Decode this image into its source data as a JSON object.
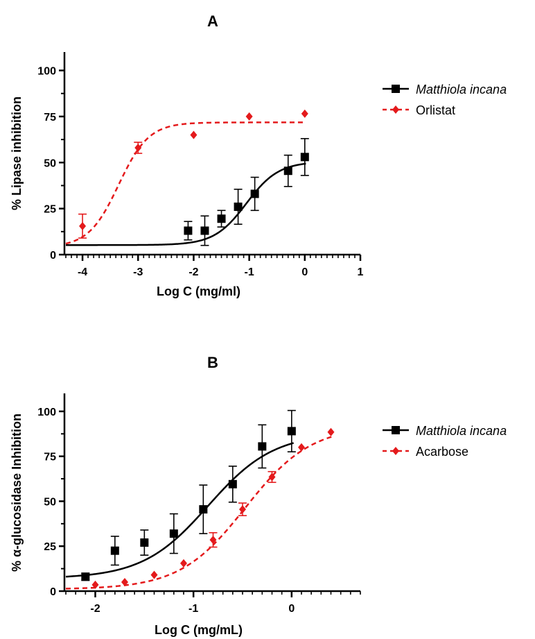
{
  "chart_data": [
    {
      "panel": "A",
      "type": "scatter",
      "xlabel": "Log C (mg/ml)",
      "ylabel": "% Lipase inhibition",
      "xlim": [
        -4.3,
        1.0
      ],
      "ylim": [
        0,
        110
      ],
      "xticks": [
        -4,
        -3,
        -2,
        -1,
        0,
        1
      ],
      "yticks": [
        0,
        25,
        50,
        75,
        100
      ],
      "grid": false,
      "legend": "right",
      "series": [
        {
          "name": "Matthiola incana",
          "color": "#000000",
          "marker": "square",
          "line": "solid",
          "points": [
            {
              "x": -2.1,
              "y": 13,
              "err": 5
            },
            {
              "x": -1.8,
              "y": 13,
              "err": 8
            },
            {
              "x": -1.5,
              "y": 19.5,
              "err": 4.5
            },
            {
              "x": -1.2,
              "y": 26,
              "err": 9.5
            },
            {
              "x": -0.9,
              "y": 33,
              "err": 9
            },
            {
              "x": -0.3,
              "y": 45.5,
              "err": 8.5
            },
            {
              "x": 0.0,
              "y": 53,
              "err": 10
            }
          ],
          "fit": {
            "bottom": 5.2,
            "top": 50.5,
            "logEC50": -1.05,
            "hill": 1.5
          }
        },
        {
          "name": "Orlistat",
          "color": "#e41a1c",
          "marker": "diamond",
          "line": "dashed",
          "points": [
            {
              "x": -4.0,
              "y": 15.5,
              "err": 6.5
            },
            {
              "x": -3.0,
              "y": 58,
              "err": 3
            },
            {
              "x": -2.0,
              "y": 65,
              "err": 0
            },
            {
              "x": -1.0,
              "y": 75,
              "err": 0
            },
            {
              "x": 0.0,
              "y": 76.5,
              "err": 0
            }
          ],
          "fit": {
            "bottom": 4.0,
            "top": 71.8,
            "logEC50": -3.35,
            "hill": 1.6
          }
        }
      ]
    },
    {
      "panel": "B",
      "type": "scatter",
      "xlabel": "Log C (mg/mL)",
      "ylabel": "% α-glucosidase Inhibition",
      "xlim": [
        -2.3,
        0.7
      ],
      "ylim": [
        0,
        110
      ],
      "xticks": [
        -2,
        -1,
        0
      ],
      "yticks": [
        0,
        25,
        50,
        75,
        100
      ],
      "grid": false,
      "legend": "right",
      "series": [
        {
          "name": "Matthiola incana",
          "color": "#000000",
          "marker": "square",
          "line": "solid",
          "points": [
            {
              "x": -2.1,
              "y": 8,
              "err": 2
            },
            {
              "x": -1.8,
              "y": 22.5,
              "err": 8
            },
            {
              "x": -1.5,
              "y": 27,
              "err": 7
            },
            {
              "x": -1.2,
              "y": 32,
              "err": 11
            },
            {
              "x": -0.9,
              "y": 45.5,
              "err": 13.5
            },
            {
              "x": -0.6,
              "y": 59.5,
              "err": 10
            },
            {
              "x": -0.3,
              "y": 80.5,
              "err": 12
            },
            {
              "x": 0.0,
              "y": 89,
              "err": 11.5
            }
          ],
          "fit": {
            "bottom": 7,
            "top": 88,
            "logEC50": -0.85,
            "hill": 1.3
          }
        },
        {
          "name": "Acarbose",
          "color": "#e41a1c",
          "marker": "diamond",
          "line": "dashed",
          "points": [
            {
              "x": -2.0,
              "y": 3.5,
              "err": 0
            },
            {
              "x": -1.7,
              "y": 5,
              "err": 0
            },
            {
              "x": -1.4,
              "y": 9,
              "err": 0
            },
            {
              "x": -1.1,
              "y": 15.5,
              "err": 0
            },
            {
              "x": -0.8,
              "y": 28.5,
              "err": 4
            },
            {
              "x": -0.5,
              "y": 45.5,
              "err": 3.5
            },
            {
              "x": -0.2,
              "y": 63.5,
              "err": 3
            },
            {
              "x": 0.1,
              "y": 80,
              "err": 0
            },
            {
              "x": 0.4,
              "y": 88.5,
              "err": 0
            }
          ],
          "fit": {
            "bottom": 1,
            "top": 92,
            "logEC50": -0.47,
            "hill": 1.3
          }
        }
      ]
    }
  ]
}
